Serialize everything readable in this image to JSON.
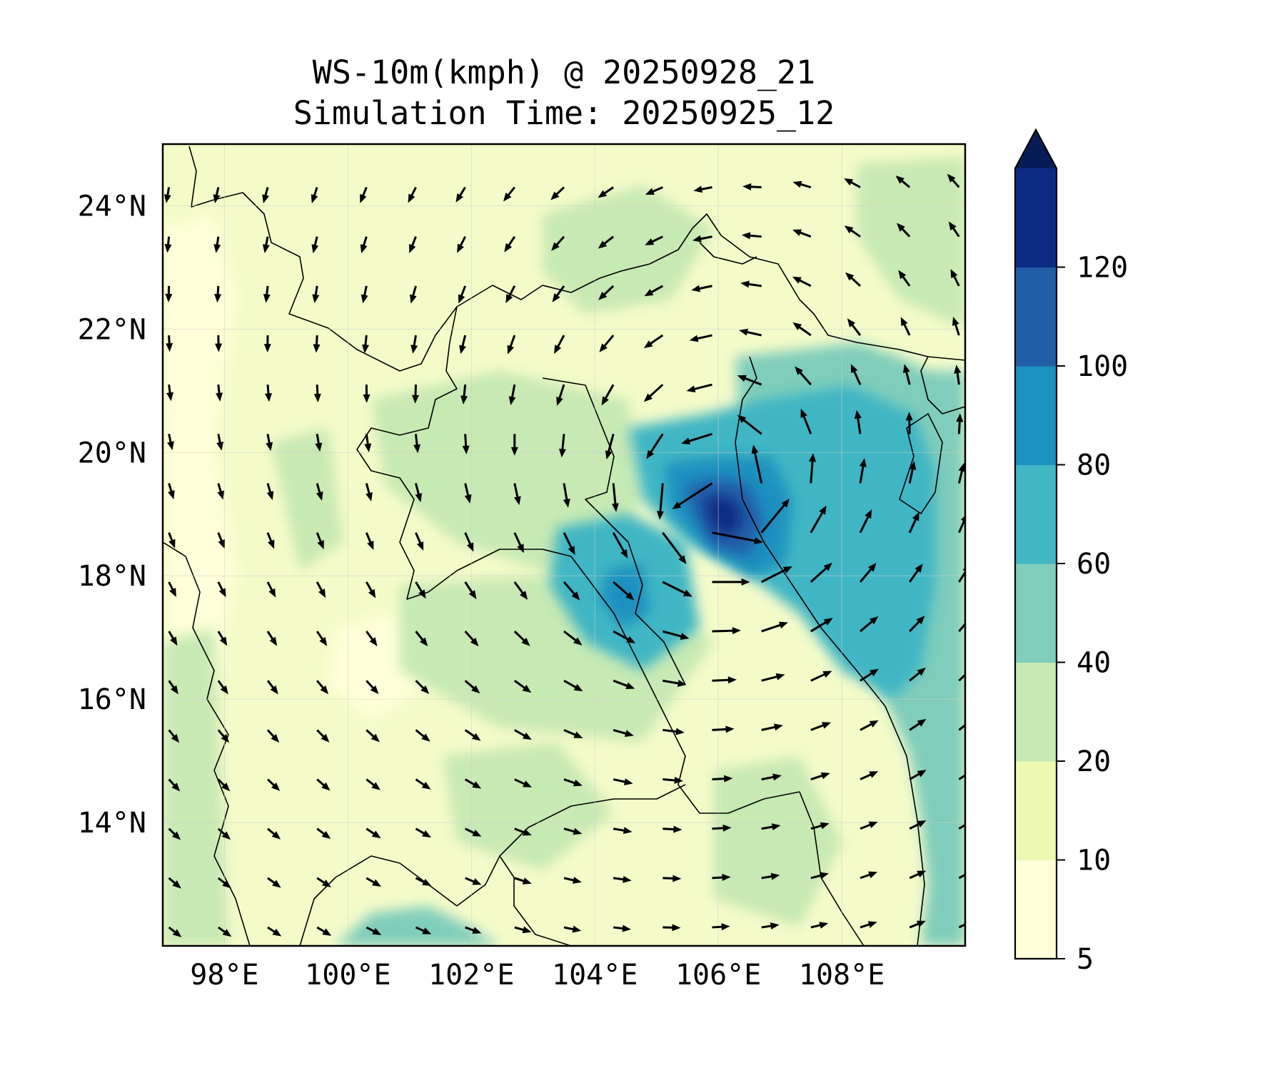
{
  "title": {
    "line1": "WS-10m(kmph) @ 20250928_21",
    "line2": "Simulation Time: 20250925_12"
  },
  "map": {
    "lon_range": [
      97,
      110
    ],
    "lat_range": [
      12,
      25
    ],
    "x_ticks": [
      {
        "value": 98,
        "label": "98°E"
      },
      {
        "value": 100,
        "label": "100°E"
      },
      {
        "value": 102,
        "label": "102°E"
      },
      {
        "value": 104,
        "label": "104°E"
      },
      {
        "value": 106,
        "label": "106°E"
      },
      {
        "value": 108,
        "label": "108°E"
      }
    ],
    "y_ticks": [
      {
        "value": 24,
        "label": "24°N"
      },
      {
        "value": 22,
        "label": "22°N"
      },
      {
        "value": 20,
        "label": "20°N"
      },
      {
        "value": 18,
        "label": "18°N"
      },
      {
        "value": 16,
        "label": "16°N"
      },
      {
        "value": 14,
        "label": "14°N"
      }
    ],
    "gridlines": true,
    "storm_center": {
      "lon": 106.0,
      "lat": 18.9
    }
  },
  "colorbar": {
    "levels": [
      5,
      10,
      20,
      40,
      60,
      80,
      100,
      120
    ],
    "labels": [
      "5",
      "10",
      "20",
      "40",
      "60",
      "80",
      "100",
      "120"
    ],
    "colors": [
      "#ffffd9",
      "#edf8b1",
      "#c7e9b4",
      "#7fcdbb",
      "#41b6c4",
      "#1d91c0",
      "#225ea8",
      "#0c2c84"
    ],
    "extend_color": "#081d58",
    "extend": "max"
  },
  "colors": {
    "land_weak": "#f4fbc9",
    "ocean": "#7fcdbb",
    "border": "#000000",
    "arrow": "#000000"
  }
}
